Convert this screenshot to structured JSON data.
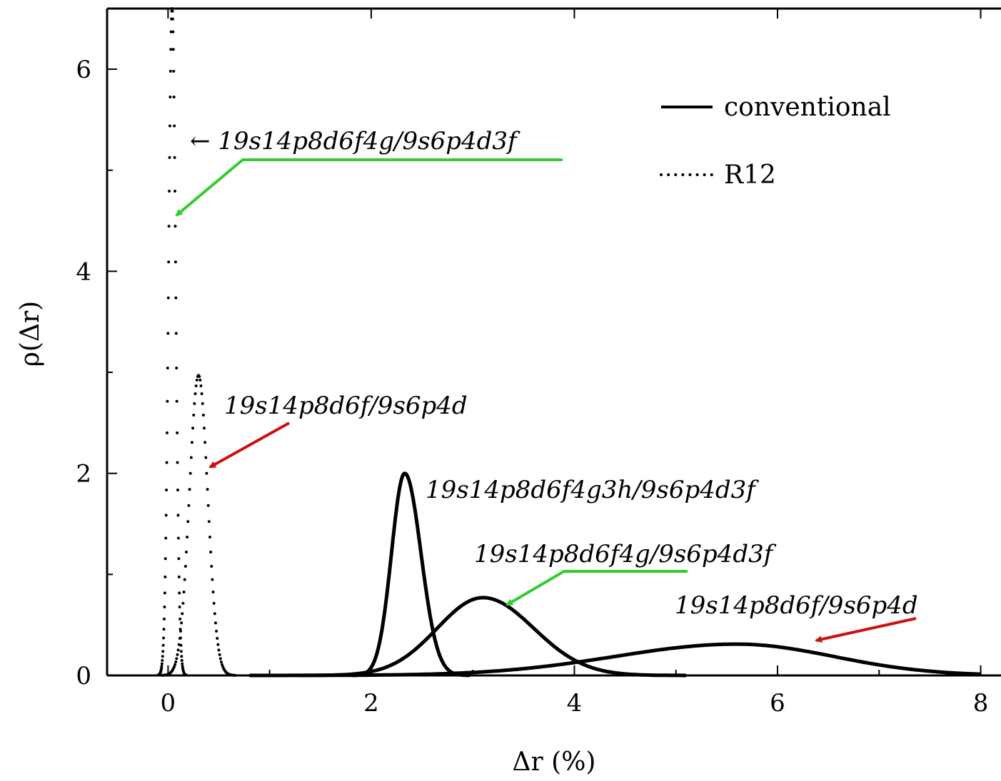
{
  "chart_data": {
    "type": "line",
    "title": "",
    "xlabel": "Δr (%)",
    "ylabel": "ρ(Δr)",
    "xlim": [
      -0.6,
      8.2
    ],
    "ylim": [
      0,
      6.6
    ],
    "xticks": [
      "0",
      "2",
      "4",
      "6",
      "8"
    ],
    "yticks": [
      "0",
      "2",
      "4",
      "6"
    ],
    "grid": false,
    "legend": {
      "placement": "top-right",
      "entries": [
        {
          "label": "conventional",
          "style": "solid"
        },
        {
          "label": "R12",
          "style": "dotted"
        }
      ]
    },
    "series": [
      {
        "method": "R12",
        "style": "dotted",
        "basis": "19s14p8d6f4g/9s6p4d3f",
        "peak_x": 0.04,
        "peak_y": 6.6,
        "sigma": 0.035
      },
      {
        "method": "R12",
        "style": "dotted",
        "basis": "19s14p8d6f/9s6p4d",
        "peak_x": 0.3,
        "peak_y": 2.97,
        "sigma": 0.09
      },
      {
        "method": "conventional",
        "style": "solid",
        "basis": "19s14p8d6f4g3h/9s6p4d3f",
        "peak_x": 2.33,
        "peak_y": 2.0,
        "sigma_left": 0.13,
        "sigma_right": 0.16
      },
      {
        "method": "conventional",
        "style": "solid",
        "basis": "19s14p8d6f4g/9s6p4d3f",
        "peak_x": 3.1,
        "peak_y": 0.77,
        "sigma_left": 0.45,
        "sigma_right": 0.5
      },
      {
        "method": "conventional",
        "style": "solid",
        "basis": "19s14p8d6f/9s6p4d",
        "peak_x": 5.6,
        "peak_y": 0.31,
        "sigma_left": 1.2,
        "sigma_right": 0.95
      }
    ],
    "annotations": [
      {
        "text": "← 19s14p8d6f4g/9s6p4d3f",
        "arrow_color": "#33cc33"
      },
      {
        "text": "19s14p8d6f/9s6p4d",
        "arrow_color": "#cc1111"
      },
      {
        "text": "19s14p8d6f4g3h/9s6p4d3f",
        "arrow_color": ""
      },
      {
        "text": "19s14p8d6f4g/9s6p4d3f",
        "arrow_color": "#33cc33"
      },
      {
        "text": "19s14p8d6f/9s6p4d",
        "arrow_color": "#cc1111"
      }
    ]
  }
}
